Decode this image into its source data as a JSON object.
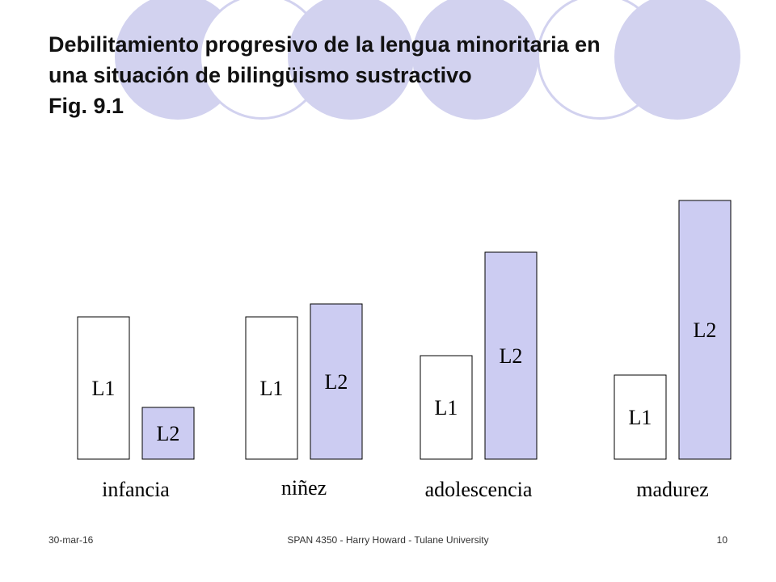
{
  "title": {
    "line1": "Debilitamiento progresivo de la lengua minoritaria en",
    "line2": "una situación de bilingüismo sustractivo",
    "line3": "Fig. 9.1"
  },
  "footer": {
    "date": "30-mar-16",
    "center": "SPAN 4350 - Harry Howard - Tulane University",
    "page": "10"
  },
  "colors": {
    "l1_fill": "#ffffff",
    "l2_fill": "#ccccf2",
    "stroke": "#000000",
    "decoration": "#d2d2ef"
  },
  "stages": [
    {
      "label": "infancia",
      "bars": [
        {
          "label": "L1",
          "value": 176
        },
        {
          "label": "L2",
          "value": 64
        }
      ]
    },
    {
      "label": "niñez",
      "bars": [
        {
          "label": "L1",
          "value": 176
        },
        {
          "label": "L2",
          "value": 192
        }
      ]
    },
    {
      "label": "adolescencia",
      "bars": [
        {
          "label": "L1",
          "value": 128
        },
        {
          "label": "L2",
          "value": 256
        }
      ]
    },
    {
      "label": "madurez",
      "bars": [
        {
          "label": "L1",
          "value": 104
        },
        {
          "label": "L2",
          "value": 320
        }
      ]
    }
  ]
}
